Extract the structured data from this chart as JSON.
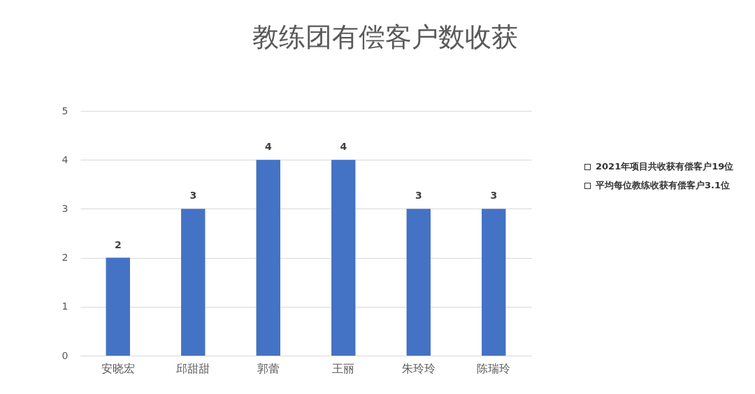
{
  "chart_data": {
    "type": "bar",
    "title": "教练团有偿客户数收获",
    "categories": [
      "安晓宏",
      "邱甜甜",
      "郭蕾",
      "王丽",
      "朱玲玲",
      "陈瑞玲"
    ],
    "values": [
      2,
      3,
      4,
      4,
      3,
      3
    ],
    "color": "#4472c4",
    "ylim": [
      0,
      5
    ],
    "yticks": [
      0,
      1,
      2,
      3,
      4,
      5
    ],
    "grid": "y",
    "data_labels": true,
    "annotations": [
      "2021年项目共收获有偿客户19位",
      "平均每位教练收获有偿客户3.1位"
    ]
  }
}
